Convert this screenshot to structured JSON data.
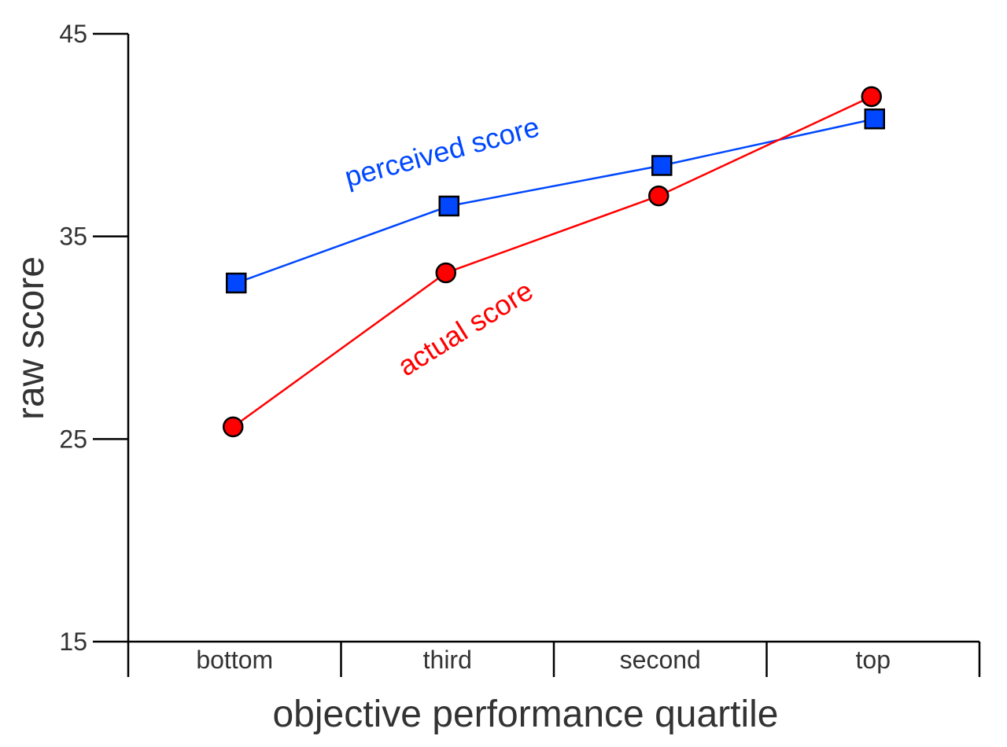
{
  "chart_data": {
    "type": "line",
    "xlabel": "objective performance quartile",
    "ylabel": "raw score",
    "categories": [
      "bottom",
      "third",
      "second",
      "top"
    ],
    "ylim": [
      15,
      45
    ],
    "yticks": [
      15,
      25,
      35,
      45
    ],
    "grid": false,
    "legend": "none",
    "series": [
      {
        "name": "perceived score",
        "values": [
          32.7,
          36.5,
          38.5,
          40.8
        ],
        "color": "#0047FF",
        "marker": "square"
      },
      {
        "name": "actual score",
        "values": [
          25.6,
          33.2,
          37.0,
          41.9
        ],
        "color": "#FF0000",
        "marker": "circle"
      }
    ]
  }
}
